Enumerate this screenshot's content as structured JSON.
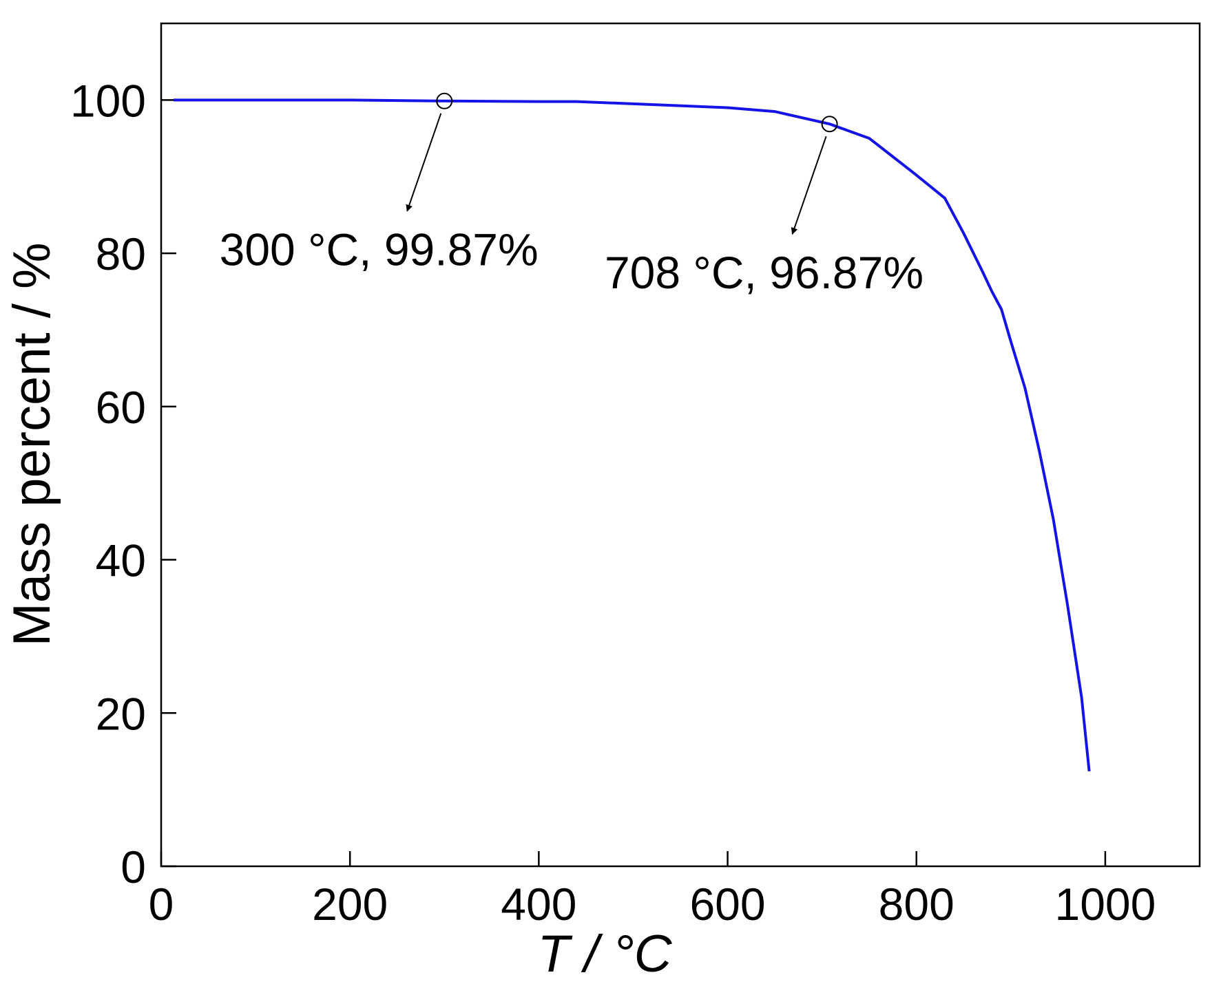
{
  "chart_data": {
    "type": "line",
    "x_label": "T / °C",
    "y_label": "Mass percent / %",
    "x": [
      13,
      100,
      200,
      300,
      400,
      440,
      500,
      600,
      650,
      708,
      750,
      800,
      830,
      850,
      870,
      880,
      890,
      900,
      915,
      930,
      945,
      960,
      975,
      983
    ],
    "values": [
      100,
      100,
      100,
      99.87,
      99.8,
      99.8,
      99.5,
      99.0,
      98.5,
      96.87,
      95.0,
      90.2,
      87.2,
      82.6,
      77.6,
      75.0,
      72.7,
      68.5,
      62.4,
      54.3,
      45.3,
      34.1,
      22.0,
      12.4
    ],
    "color": "#1414e6",
    "xlim": [
      0,
      1100
    ],
    "xticks": [
      0,
      200,
      400,
      600,
      800,
      1000
    ],
    "ylim": [
      0,
      110
    ],
    "yticks": [
      0,
      20,
      40,
      60,
      80,
      100
    ],
    "annotations": [
      {
        "text": "300 °C, 99.87%",
        "x": 300,
        "y": 99.87
      },
      {
        "text": "708 °C, 96.87%",
        "x": 708,
        "y": 96.87
      }
    ]
  }
}
